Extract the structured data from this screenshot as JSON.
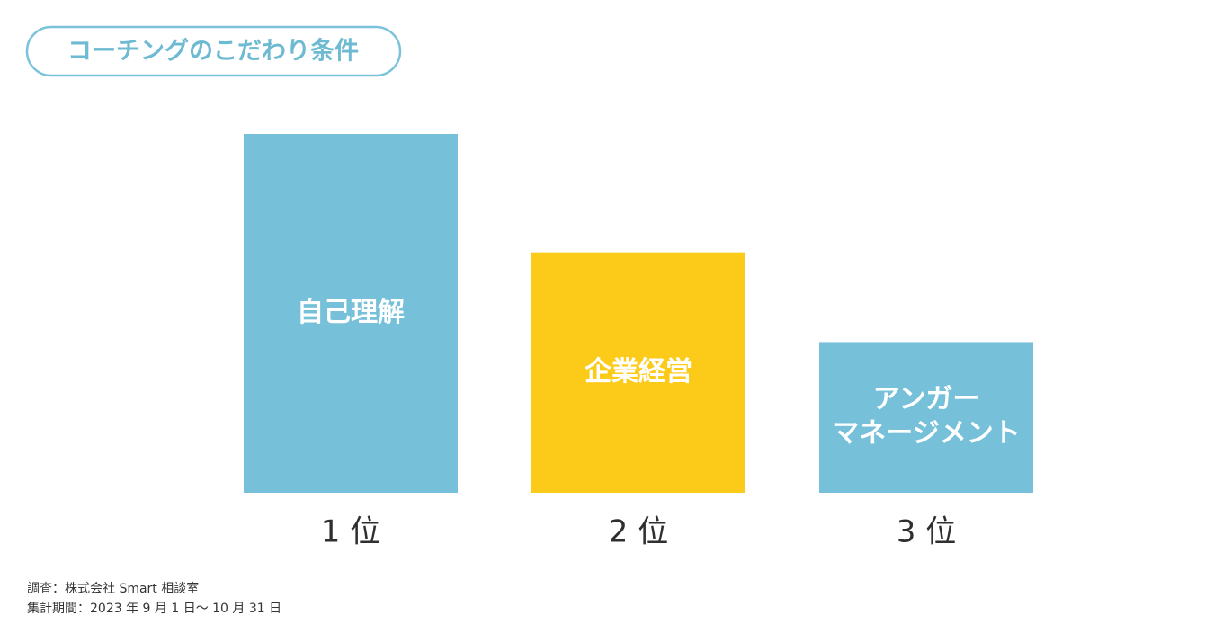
{
  "chart_data": {
    "type": "bar",
    "title": "コーチングのこだわり条件",
    "categories": [
      "1 位",
      "2 位",
      "3 位"
    ],
    "bar_labels": [
      [
        "自己理解"
      ],
      [
        "企業経営"
      ],
      [
        "アンガー",
        "マネージメント"
      ]
    ],
    "values": [
      100,
      67,
      42
    ],
    "colors": [
      "#76c0d9",
      "#fccb19",
      "#76c0d9"
    ],
    "ylim": [
      0,
      100
    ],
    "notes": [
      "調査：株式会社 Smart 相談室",
      "集計期間：2023 年 9 月 1 日〜 10 月 31 日"
    ]
  }
}
